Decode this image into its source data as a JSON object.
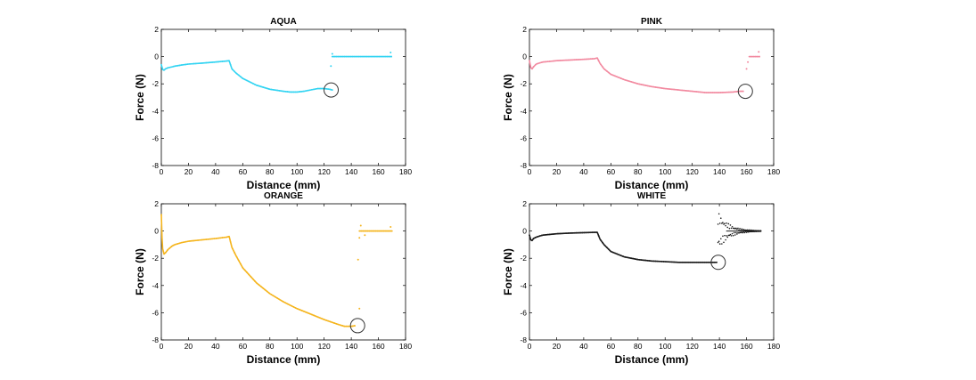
{
  "chart_data": [
    {
      "type": "scatter",
      "title": "AQUA",
      "xlabel": "Distance (mm)",
      "ylabel": "Force (N)",
      "xlim": [
        0,
        180
      ],
      "ylim": [
        -8,
        2
      ],
      "xticks": [
        "0",
        "20",
        "40",
        "60",
        "80",
        "100",
        "120",
        "140",
        "160",
        "180"
      ],
      "yticks": [
        "2",
        "0",
        "-2",
        "-4",
        "-6",
        "-8"
      ],
      "color": "#33d4f2",
      "series": [
        {
          "x": [
            0,
            1,
            2,
            3,
            5,
            8,
            10,
            15,
            20,
            30,
            40,
            48,
            50,
            52,
            55,
            60,
            70,
            80,
            90,
            95,
            100,
            105,
            110,
            115,
            120,
            124,
            126
          ],
          "y": [
            -0.6,
            -0.95,
            -1.0,
            -0.9,
            -0.82,
            -0.75,
            -0.7,
            -0.62,
            -0.55,
            -0.48,
            -0.4,
            -0.33,
            -0.3,
            -0.9,
            -1.2,
            -1.6,
            -2.1,
            -2.4,
            -2.55,
            -2.6,
            -2.6,
            -2.55,
            -2.45,
            -2.35,
            -2.35,
            -2.4,
            -2.45
          ]
        },
        {
          "x": [
            126,
            130,
            135,
            140,
            145,
            150,
            155,
            160,
            165,
            170
          ],
          "y": [
            0,
            0,
            0,
            0,
            0,
            0,
            0,
            0,
            0,
            0
          ]
        }
      ],
      "scatter_points": [
        {
          "x": 125,
          "y": -0.7
        },
        {
          "x": 126,
          "y": 0.2
        },
        {
          "x": 169,
          "y": 0.3
        }
      ],
      "break_marker": {
        "x": 124.5,
        "y": -2.45
      }
    },
    {
      "type": "scatter",
      "title": "PINK",
      "xlabel": "Distance (mm)",
      "ylabel": "Force (N)",
      "xlim": [
        0,
        180
      ],
      "ylim": [
        -8,
        2
      ],
      "xticks": [
        "0",
        "20",
        "40",
        "60",
        "80",
        "100",
        "120",
        "140",
        "160",
        "180"
      ],
      "yticks": [
        "2",
        "0",
        "-2",
        "-4",
        "-6",
        "-8"
      ],
      "color": "#f28aa0",
      "series": [
        {
          "x": [
            0,
            1,
            2,
            3,
            5,
            8,
            10,
            15,
            20,
            30,
            40,
            48,
            50,
            52,
            55,
            60,
            70,
            80,
            90,
            100,
            110,
            120,
            130,
            140,
            150,
            155,
            158
          ],
          "y": [
            -0.3,
            -0.8,
            -0.9,
            -0.75,
            -0.55,
            -0.45,
            -0.4,
            -0.35,
            -0.3,
            -0.25,
            -0.2,
            -0.15,
            -0.1,
            -0.5,
            -0.9,
            -1.3,
            -1.7,
            -2.0,
            -2.2,
            -2.35,
            -2.45,
            -2.55,
            -2.65,
            -2.65,
            -2.6,
            -2.55,
            -2.55
          ]
        },
        {
          "x": [
            162,
            164,
            166,
            168,
            170
          ],
          "y": [
            0,
            0,
            0,
            0,
            0
          ]
        }
      ],
      "scatter_points": [
        {
          "x": 160,
          "y": -0.9
        },
        {
          "x": 161,
          "y": -0.4
        },
        {
          "x": 169,
          "y": 0.35
        }
      ],
      "break_marker": {
        "x": 158.5,
        "y": -2.55
      }
    },
    {
      "type": "scatter",
      "title": "ORANGE",
      "xlabel": "Distance (mm)",
      "ylabel": "Force (N)",
      "xlim": [
        0,
        180
      ],
      "ylim": [
        -8,
        2
      ],
      "xticks": [
        "0",
        "20",
        "40",
        "60",
        "80",
        "100",
        "120",
        "140",
        "160",
        "180"
      ],
      "yticks": [
        "2",
        "0",
        "-2",
        "-4",
        "-6",
        "-8"
      ],
      "color": "#f5b51e",
      "series": [
        {
          "x": [
            0,
            0.5,
            1,
            2,
            3,
            5,
            8,
            10,
            15,
            20,
            30,
            40,
            48,
            50,
            52,
            55,
            60,
            70,
            80,
            90,
            100,
            110,
            120,
            130,
            135,
            140,
            143
          ],
          "y": [
            1.2,
            -0.5,
            -1.3,
            -1.7,
            -1.6,
            -1.35,
            -1.1,
            -1.0,
            -0.85,
            -0.75,
            -0.65,
            -0.55,
            -0.45,
            -0.4,
            -1.2,
            -1.8,
            -2.7,
            -3.8,
            -4.6,
            -5.2,
            -5.7,
            -6.1,
            -6.5,
            -6.85,
            -7.0,
            -7.0,
            -6.95
          ]
        },
        {
          "x": [
            146,
            150,
            155,
            160,
            165,
            170
          ],
          "y": [
            0,
            0,
            0,
            0,
            0,
            0
          ]
        }
      ],
      "scatter_points": [
        {
          "x": 145,
          "y": -2.1
        },
        {
          "x": 146,
          "y": -5.7
        },
        {
          "x": 146,
          "y": -0.5
        },
        {
          "x": 147,
          "y": 0.4
        },
        {
          "x": 150,
          "y": -0.3
        },
        {
          "x": 169,
          "y": 0.3
        }
      ],
      "break_marker": {
        "x": 144,
        "y": -6.95
      }
    },
    {
      "type": "scatter",
      "title": "WHITE",
      "xlabel": "Distance (mm)",
      "ylabel": "Force (N)",
      "xlim": [
        0,
        180
      ],
      "ylim": [
        -8,
        2
      ],
      "xticks": [
        "0",
        "20",
        "40",
        "60",
        "80",
        "100",
        "120",
        "140",
        "160",
        "180"
      ],
      "yticks": [
        "2",
        "0",
        "-2",
        "-4",
        "-6",
        "-8"
      ],
      "color": "#1a1a1a",
      "series": [
        {
          "x": [
            0,
            1,
            2,
            3,
            5,
            8,
            10,
            15,
            20,
            30,
            40,
            48,
            50,
            52,
            55,
            60,
            70,
            80,
            90,
            100,
            110,
            120,
            130,
            135,
            138
          ],
          "y": [
            -0.3,
            -0.65,
            -0.7,
            -0.55,
            -0.45,
            -0.35,
            -0.3,
            -0.25,
            -0.2,
            -0.15,
            -0.12,
            -0.1,
            -0.1,
            -0.6,
            -1.0,
            -1.5,
            -1.9,
            -2.1,
            -2.2,
            -2.25,
            -2.3,
            -2.3,
            -2.3,
            -2.3,
            -2.3
          ]
        }
      ],
      "oscillation": {
        "x_start": 139,
        "x_end": 171,
        "amplitude_start": 1.4
      },
      "break_marker": {
        "x": 138.5,
        "y": -2.3
      }
    }
  ]
}
